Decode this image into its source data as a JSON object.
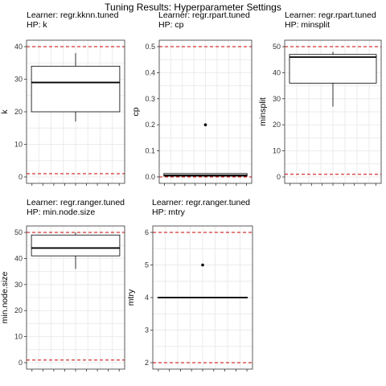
{
  "title": "Tuning Results: Hyperparameter Settings",
  "colors": {
    "limit_line": "#cc0000",
    "grid": "#ebebeb",
    "box": "#000000",
    "background": "#ffffff"
  },
  "chart_data": [
    {
      "type": "box",
      "title_lines": [
        "Learner: regr.kknn.tuned",
        "HP: k"
      ],
      "ylabel": "k",
      "yticks": [
        0,
        10,
        20,
        30,
        40
      ],
      "ylim": [
        0,
        40
      ],
      "limits": [
        1,
        40
      ],
      "box": {
        "whisker_low": 17,
        "q1": 20,
        "median": 29,
        "q3": 34,
        "whisker_high": 38,
        "outliers": []
      },
      "grid": true
    },
    {
      "type": "box",
      "title_lines": [
        "Learner: regr.rpart.tuned",
        "HP: cp"
      ],
      "ylabel": "cp",
      "yticks": [
        0.0,
        0.1,
        0.2,
        0.3,
        0.4,
        0.5
      ],
      "tick_labels": [
        "0.0",
        "0.1",
        "0.2",
        "0.3",
        "0.4",
        "0.5"
      ],
      "ylim": [
        0,
        0.5
      ],
      "limits": [
        0,
        0.5
      ],
      "box": {
        "whisker_low": 0.0,
        "q1": 0.003,
        "median": 0.006,
        "q3": 0.013,
        "whisker_high": 0.013,
        "outliers": [
          0.2
        ]
      },
      "grid": true
    },
    {
      "type": "box",
      "title_lines": [
        "Learner: regr.rpart.tuned",
        "HP: minsplit"
      ],
      "ylabel": "minsplit",
      "yticks": [
        0,
        10,
        20,
        30,
        40,
        50
      ],
      "ylim": [
        0,
        50
      ],
      "limits": [
        1,
        50
      ],
      "box": {
        "whisker_low": 27,
        "q1": 36,
        "median": 46,
        "q3": 47,
        "whisker_high": 48,
        "outliers": []
      },
      "grid": true
    },
    {
      "type": "box",
      "title_lines": [
        "Learner: regr.ranger.tuned",
        "HP: min.node.size"
      ],
      "ylabel": "min.node.size",
      "yticks": [
        0,
        10,
        20,
        30,
        40,
        50
      ],
      "ylim": [
        0,
        50
      ],
      "limits": [
        1,
        50
      ],
      "box": {
        "whisker_low": 36,
        "q1": 41,
        "median": 44,
        "q3": 49,
        "whisker_high": 50,
        "outliers": []
      },
      "grid": true
    },
    {
      "type": "box",
      "title_lines": [
        "Learner: regr.ranger.tuned",
        "HP: mtry"
      ],
      "ylabel": "mtry",
      "yticks": [
        2,
        3,
        4,
        5,
        6
      ],
      "ylim": [
        2,
        6
      ],
      "limits": [
        2,
        6
      ],
      "box": {
        "whisker_low": 4,
        "q1": 4,
        "median": 4,
        "q3": 4,
        "whisker_high": 4,
        "outliers": [
          5
        ]
      },
      "grid": true
    }
  ]
}
